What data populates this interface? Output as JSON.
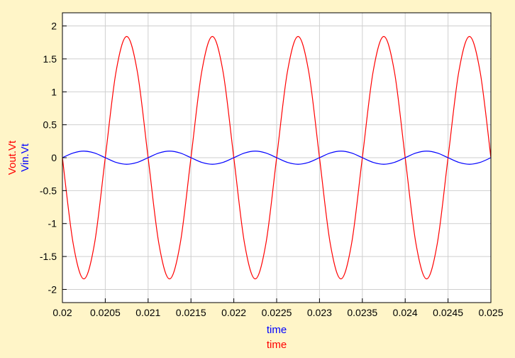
{
  "colors": {
    "background": "#fff5c8",
    "plot_background": "#ffffff",
    "grid": "#cfcfcf",
    "axis": "#000000",
    "vout": "#ff0000",
    "vin": "#0000ff"
  },
  "chart_data": {
    "type": "line",
    "title": "",
    "xlabels": [
      {
        "text": "time",
        "color": "#0000ff"
      },
      {
        "text": "time",
        "color": "#ff0000"
      }
    ],
    "ylabels": [
      {
        "text": "Vout.Vt",
        "color": "#ff0000"
      },
      {
        "text": "Vin.Vt",
        "color": "#0000ff"
      }
    ],
    "xlim": [
      0.02,
      0.025
    ],
    "ylim": [
      -2.2,
      2.2
    ],
    "grid": true,
    "xticks": [
      {
        "value": 0.02,
        "label": "0.02"
      },
      {
        "value": 0.0205,
        "label": "0.0205"
      },
      {
        "value": 0.021,
        "label": "0.021"
      },
      {
        "value": 0.0215,
        "label": "0.0215"
      },
      {
        "value": 0.022,
        "label": "0.022"
      },
      {
        "value": 0.0225,
        "label": "0.0225"
      },
      {
        "value": 0.023,
        "label": "0.023"
      },
      {
        "value": 0.0235,
        "label": "0.0235"
      },
      {
        "value": 0.024,
        "label": "0.024"
      },
      {
        "value": 0.0245,
        "label": "0.0245"
      },
      {
        "value": 0.025,
        "label": "0.025"
      }
    ],
    "yticks": [
      {
        "value": 2,
        "label": "2"
      },
      {
        "value": 1.5,
        "label": "1.5"
      },
      {
        "value": 1,
        "label": "1"
      },
      {
        "value": 0.5,
        "label": "0.5"
      },
      {
        "value": 0,
        "label": "0"
      },
      {
        "value": -0.5,
        "label": "-0.5"
      },
      {
        "value": -1,
        "label": "-1"
      },
      {
        "value": -1.5,
        "label": "-1.5"
      },
      {
        "value": -2,
        "label": "-2"
      }
    ],
    "series": [
      {
        "name": "Vout.Vt",
        "color": "#ff0000",
        "x": [
          0.02,
          0.020125,
          0.02025,
          0.020375,
          0.0205,
          0.020625,
          0.02075,
          0.020875,
          0.021,
          0.021125,
          0.02125,
          0.021375,
          0.0215,
          0.021625,
          0.02175,
          0.021875,
          0.022,
          0.022125,
          0.02225,
          0.022375,
          0.0225,
          0.022625,
          0.02275,
          0.022875,
          0.023,
          0.023125,
          0.02325,
          0.023375,
          0.0235,
          0.023625,
          0.02375,
          0.023875,
          0.024,
          0.024125,
          0.02425,
          0.024375,
          0.0245,
          0.024625,
          0.02475,
          0.024875,
          0.025
        ],
        "y": [
          0,
          -1.3,
          -1.84,
          -1.3,
          0,
          1.3,
          1.84,
          1.3,
          0,
          -1.3,
          -1.84,
          -1.3,
          0,
          1.3,
          1.84,
          1.3,
          0,
          -1.3,
          -1.84,
          -1.3,
          0,
          1.3,
          1.84,
          1.3,
          0,
          -1.3,
          -1.84,
          -1.3,
          0,
          1.3,
          1.84,
          1.3,
          0,
          -1.3,
          -1.84,
          -1.3,
          0,
          1.3,
          1.84,
          1.3,
          0
        ]
      },
      {
        "name": "Vin.Vt",
        "color": "#0000ff",
        "x": [
          0.02,
          0.020125,
          0.02025,
          0.020375,
          0.0205,
          0.020625,
          0.02075,
          0.020875,
          0.021,
          0.021125,
          0.02125,
          0.021375,
          0.0215,
          0.021625,
          0.02175,
          0.021875,
          0.022,
          0.022125,
          0.02225,
          0.022375,
          0.0225,
          0.022625,
          0.02275,
          0.022875,
          0.023,
          0.023125,
          0.02325,
          0.023375,
          0.0235,
          0.023625,
          0.02375,
          0.023875,
          0.024,
          0.024125,
          0.02425,
          0.024375,
          0.0245,
          0.024625,
          0.02475,
          0.024875,
          0.025
        ],
        "y": [
          0,
          0.071,
          0.1,
          0.071,
          0,
          -0.071,
          -0.1,
          -0.071,
          0,
          0.071,
          0.1,
          0.071,
          0,
          -0.071,
          -0.1,
          -0.071,
          0,
          0.071,
          0.1,
          0.071,
          0,
          -0.071,
          -0.1,
          -0.071,
          0,
          0.071,
          0.1,
          0.071,
          0,
          -0.071,
          -0.1,
          -0.071,
          0,
          0.071,
          0.1,
          0.071,
          0,
          -0.071,
          -0.1,
          -0.071,
          0
        ]
      }
    ]
  }
}
